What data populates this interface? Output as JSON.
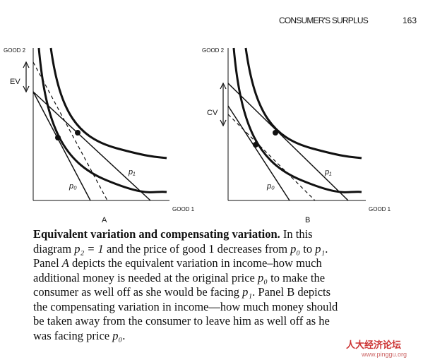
{
  "header": {
    "running_title": "CONSUMER'S SURPLUS",
    "page_number": "163"
  },
  "panels": [
    {
      "y_axis": "GOOD 2",
      "x_axis": "GOOD 1",
      "measure": "EV",
      "line_new": "p₁",
      "line_old": "p₀",
      "label": "A"
    },
    {
      "y_axis": "GOOD 2",
      "x_axis": "GOOD 1",
      "measure": "CV",
      "line_new": "p₁",
      "line_old": "p₀",
      "label": "B"
    }
  ],
  "caption": {
    "lines": [
      [
        "Equivalent variation and compensating variation.",
        " In this"
      ],
      [
        "diagram ",
        "p₂ = 1",
        " and the price of good 1 decreases from ",
        "p₀",
        " to ",
        "p₁",
        "."
      ],
      [
        "Panel ",
        "A",
        " depicts the equivalent variation in income–how much"
      ],
      [
        "additional money is needed at the original price ",
        "p₀",
        " to make the"
      ],
      [
        "consumer as well off as she would be facing ",
        "p₁",
        ". Panel B depicts"
      ],
      [
        "the compensating variation in income—how much money should"
      ],
      [
        "be taken away from the consumer to leave him as well off as he"
      ],
      [
        "was facing price ",
        "p₀",
        "."
      ]
    ]
  },
  "watermark": {
    "name": "人大经济论坛",
    "url": "www.pinggu.org"
  }
}
